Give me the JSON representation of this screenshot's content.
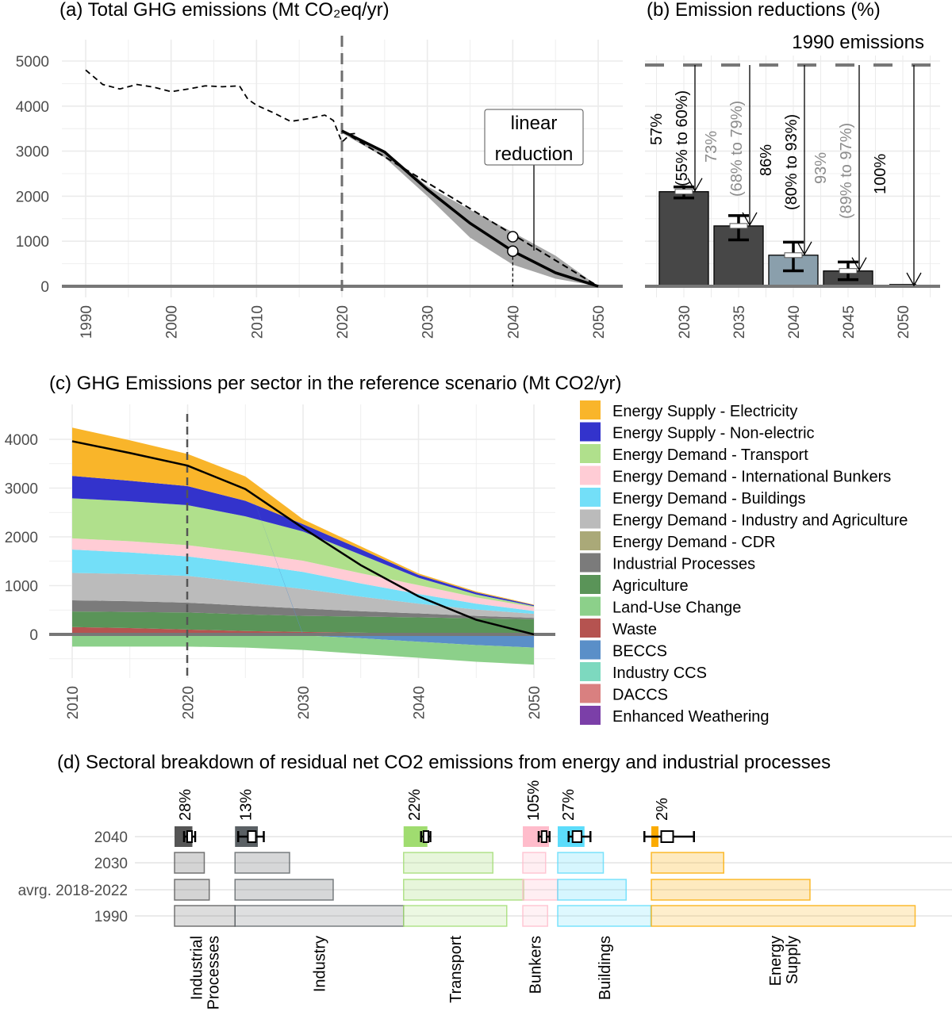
{
  "chart_data": [
    {
      "type": "line",
      "title": "(a) Total GHG emissions (Mt CO₂eq/yr)",
      "xlabel": "",
      "ylabel": "",
      "xlim": [
        1990,
        2050
      ],
      "ylim": [
        0,
        5000
      ],
      "grid": true,
      "x_ticks": [
        "1990",
        "2000",
        "2010",
        "2020",
        "2030",
        "2040",
        "2050"
      ],
      "y_ticks": [
        "0",
        "1000",
        "2000",
        "3000",
        "4000",
        "5000"
      ],
      "historical": {
        "x": [
          1990,
          1992,
          1994,
          1996,
          1998,
          2000,
          2002,
          2004,
          2006,
          2008,
          2009,
          2010,
          2012,
          2014,
          2016,
          2018,
          2019,
          2020,
          2021,
          2022
        ],
        "y": [
          4800,
          4480,
          4380,
          4480,
          4420,
          4320,
          4380,
          4450,
          4430,
          4450,
          4150,
          4020,
          3850,
          3660,
          3720,
          3800,
          3680,
          3200,
          3380,
          3400
        ]
      },
      "pathway": {
        "x": [
          2020,
          2025,
          2030,
          2035,
          2040,
          2045,
          2050
        ],
        "y": [
          3450,
          2980,
          2150,
          1400,
          780,
          300,
          0
        ]
      },
      "range_upper": [
        3460,
        3010,
        2220,
        1700,
        1200,
        680,
        0
      ],
      "range_lower": [
        3400,
        2860,
        2000,
        1080,
        480,
        170,
        0
      ],
      "linear": {
        "x": [
          2020,
          2050
        ],
        "y": [
          3450,
          0
        ]
      },
      "markers_2040": [
        1100,
        780
      ],
      "annotation": "linear reduction",
      "annotation_lines": [
        "linear",
        "reduction"
      ],
      "colors": {
        "line": "#000000",
        "band": "#a6a6a6",
        "zero": "#777777"
      }
    },
    {
      "type": "bar",
      "title": "(b) Emission reductions (%)",
      "reference_label": "1990 emissions",
      "reference_value": 4900,
      "categories": [
        "2030",
        "2035",
        "2040",
        "2045",
        "2050"
      ],
      "values": [
        2100,
        1340,
        690,
        340,
        0
      ],
      "reduction_labels": [
        "57%",
        "73%",
        "86%",
        "93%",
        "100%"
      ],
      "range_labels": [
        "(55% to 60%)",
        "(68% to 79%)",
        "(80% to 93%)",
        "(89% to 97%)",
        ""
      ],
      "error_low": [
        1960,
        1030,
        343,
        147,
        0
      ],
      "error_high": [
        2205,
        1570,
        980,
        540,
        0
      ],
      "label_colors": [
        "#000000",
        "#8c8c8c",
        "#000000",
        "#8c8c8c",
        "#000000"
      ],
      "bar_colors": [
        "#474747",
        "#474747",
        "#8a9fac",
        "#474747",
        "#474747"
      ],
      "ylim": [
        0,
        5000
      ]
    },
    {
      "type": "area",
      "title": "(c) GHG Emissions per sector in the reference scenario (Mt CO2/yr)",
      "x": [
        2010,
        2015,
        2020,
        2025,
        2030,
        2035,
        2040,
        2045,
        2050
      ],
      "xlim": [
        2010,
        2050
      ],
      "ylim": [
        -700,
        4300
      ],
      "x_ticks": [
        "2010",
        "2020",
        "2030",
        "2040",
        "2050"
      ],
      "y_ticks": [
        "0",
        "1000",
        "2000",
        "3000",
        "4000"
      ],
      "series": [
        {
          "name": "Waste",
          "color": "#b55350",
          "values": [
            150,
            130,
            100,
            70,
            50,
            35,
            20,
            15,
            10
          ]
        },
        {
          "name": "Agriculture",
          "color": "#5a9458",
          "values": [
            320,
            330,
            350,
            340,
            330,
            330,
            330,
            315,
            300
          ]
        },
        {
          "name": "Industrial Processes",
          "color": "#7b7b7b",
          "values": [
            230,
            220,
            200,
            180,
            150,
            110,
            80,
            50,
            30
          ]
        },
        {
          "name": "Energy Demand - Industry and Agriculture",
          "color": "#bbbbbb",
          "values": [
            560,
            560,
            550,
            480,
            400,
            300,
            200,
            130,
            80
          ]
        },
        {
          "name": "Energy Demand - Buildings",
          "color": "#73dff8",
          "values": [
            480,
            440,
            400,
            380,
            350,
            270,
            200,
            120,
            60
          ]
        },
        {
          "name": "Energy Demand - International Bunkers",
          "color": "#ffccd5",
          "values": [
            230,
            230,
            230,
            230,
            230,
            210,
            180,
            130,
            80
          ]
        },
        {
          "name": "Energy Demand - Transport",
          "color": "#b0e08c",
          "values": [
            820,
            820,
            820,
            740,
            600,
            380,
            150,
            60,
            20
          ]
        },
        {
          "name": "Energy Supply - Non-electric",
          "color": "#3333cc",
          "values": [
            460,
            420,
            390,
            320,
            150,
            110,
            60,
            40,
            20
          ]
        },
        {
          "name": "Energy Supply - Electricity",
          "color": "#f9b52a",
          "values": [
            990,
            830,
            660,
            500,
            100,
            60,
            30,
            20,
            10
          ]
        },
        {
          "name": "BECCS",
          "color": "#5a8fc8",
          "values": [
            0,
            0,
            0,
            0,
            -20,
            -80,
            -150,
            -220,
            -270
          ]
        },
        {
          "name": "Land-Use Change",
          "color": "#8cd08a",
          "values": [
            -250,
            -250,
            -250,
            -270,
            -300,
            -320,
            -330,
            -340,
            -350
          ]
        }
      ],
      "total_line": [
        3960,
        3720,
        3460,
        2980,
        2180,
        1420,
        780,
        300,
        0
      ],
      "legend": [
        {
          "name": "Energy Supply - Electricity",
          "color": "#f9b52a"
        },
        {
          "name": "Energy Supply - Non-electric",
          "color": "#3333cc"
        },
        {
          "name": "Energy Demand - Transport",
          "color": "#b0e08c"
        },
        {
          "name": "Energy Demand - International Bunkers",
          "color": "#ffccd5"
        },
        {
          "name": "Energy Demand - Buildings",
          "color": "#73dff8"
        },
        {
          "name": "Energy Demand - Industry and Agriculture",
          "color": "#bbbbbb"
        },
        {
          "name": "Energy Demand - CDR",
          "color": "#aaa978"
        },
        {
          "name": "Industrial Processes",
          "color": "#7b7b7b"
        },
        {
          "name": "Agriculture",
          "color": "#5a9458"
        },
        {
          "name": "Land-Use Change",
          "color": "#8cd08a"
        },
        {
          "name": "Waste",
          "color": "#b55350"
        },
        {
          "name": "BECCS",
          "color": "#5a8fc8"
        },
        {
          "name": "Industry CCS",
          "color": "#7dd9bf"
        },
        {
          "name": "DACCS",
          "color": "#d98080"
        },
        {
          "name": "Enhanced Weathering",
          "color": "#7b3fa8"
        }
      ],
      "legend_position": "right"
    },
    {
      "type": "bar",
      "title": "(d) Sectoral breakdown of residual net CO2 emissions from energy and industrial processes",
      "rows": [
        "2040",
        "2030",
        "avrg. 2018-2022",
        "1990"
      ],
      "sectors": [
        {
          "name": "Industrial Processes",
          "label_lines": [
            "Industrial",
            "Processes"
          ],
          "color": "#555555",
          "values": [
            90,
            150,
            175,
            305
          ],
          "pct_2040": "28%",
          "box_2040": [
            928,
            944,
            968,
            984
          ]
        },
        {
          "name": "Industry",
          "label_lines": [
            "Industry"
          ],
          "color": "#5a6064",
          "values": [
            115,
            275,
            495,
            850
          ],
          "pct_2040": "13%",
          "box_2040": [
            16,
            65,
            105,
            145
          ]
        },
        {
          "name": "Transport",
          "label_lines": [
            "Transport"
          ],
          "color": "#a0dc70",
          "values": [
            120,
            450,
            605,
            520
          ],
          "pct_2040": "22%",
          "box_2040": [
            88,
            100,
            125,
            135
          ]
        },
        {
          "name": "Bunkers",
          "label_lines": [
            "Bunkers"
          ],
          "color": "#ffbccb",
          "values": [
            132,
            115,
            175,
            125
          ],
          "pct_2040": "105%",
          "box_2040": [
            80,
            95,
            120,
            135
          ]
        },
        {
          "name": "Buildings",
          "label_lines": [
            "Buildings"
          ],
          "color": "#5cdcfb",
          "values": [
            135,
            230,
            345,
            470
          ],
          "pct_2040": "27%",
          "box_2040": [
            55,
            75,
            120,
            165
          ]
        },
        {
          "name": "Energy Supply",
          "label_lines": [
            "Energy",
            "Supply"
          ],
          "color": "#fbab00",
          "values": [
            36,
            365,
            800,
            1330
          ],
          "pct_2040": "2%",
          "box_2040": [
            -35,
            50,
            110,
            215
          ]
        }
      ]
    }
  ]
}
